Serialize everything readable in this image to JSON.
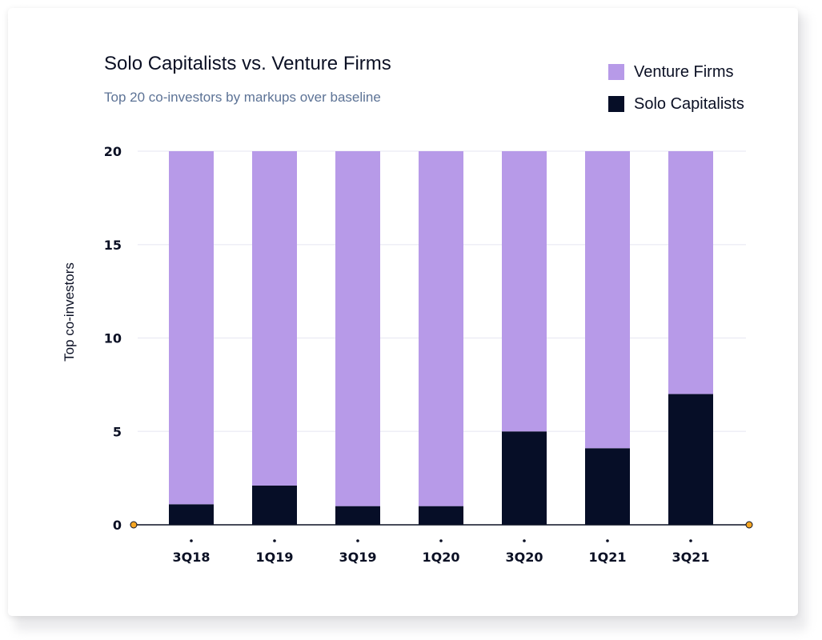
{
  "chart_data": {
    "type": "bar",
    "stacked": true,
    "title": "Solo Capitalists vs. Venture Firms",
    "subtitle": "Top 20 co-investors by markups over baseline",
    "xlabel": "",
    "ylabel": "Top co-investors",
    "categories": [
      "3Q18",
      "1Q19",
      "3Q19",
      "1Q20",
      "3Q20",
      "1Q21",
      "3Q21"
    ],
    "series": [
      {
        "name": "Solo Capitalists",
        "values": [
          1.1,
          2.1,
          1.0,
          1.0,
          5.0,
          4.1,
          7.0
        ],
        "color": "#060e27"
      },
      {
        "name": "Venture Firms",
        "values": [
          18.9,
          17.9,
          19.0,
          19.0,
          15.0,
          15.9,
          13.0
        ],
        "color": "#b79ae8"
      }
    ],
    "ylim": [
      0,
      20
    ],
    "yticks": [
      0,
      5,
      10,
      15,
      20
    ],
    "grid": true,
    "legend_position": "top-right",
    "legend": [
      {
        "label": "Venture Firms",
        "color": "#b79ae8"
      },
      {
        "label": "Solo Capitalists",
        "color": "#060e27"
      }
    ]
  }
}
